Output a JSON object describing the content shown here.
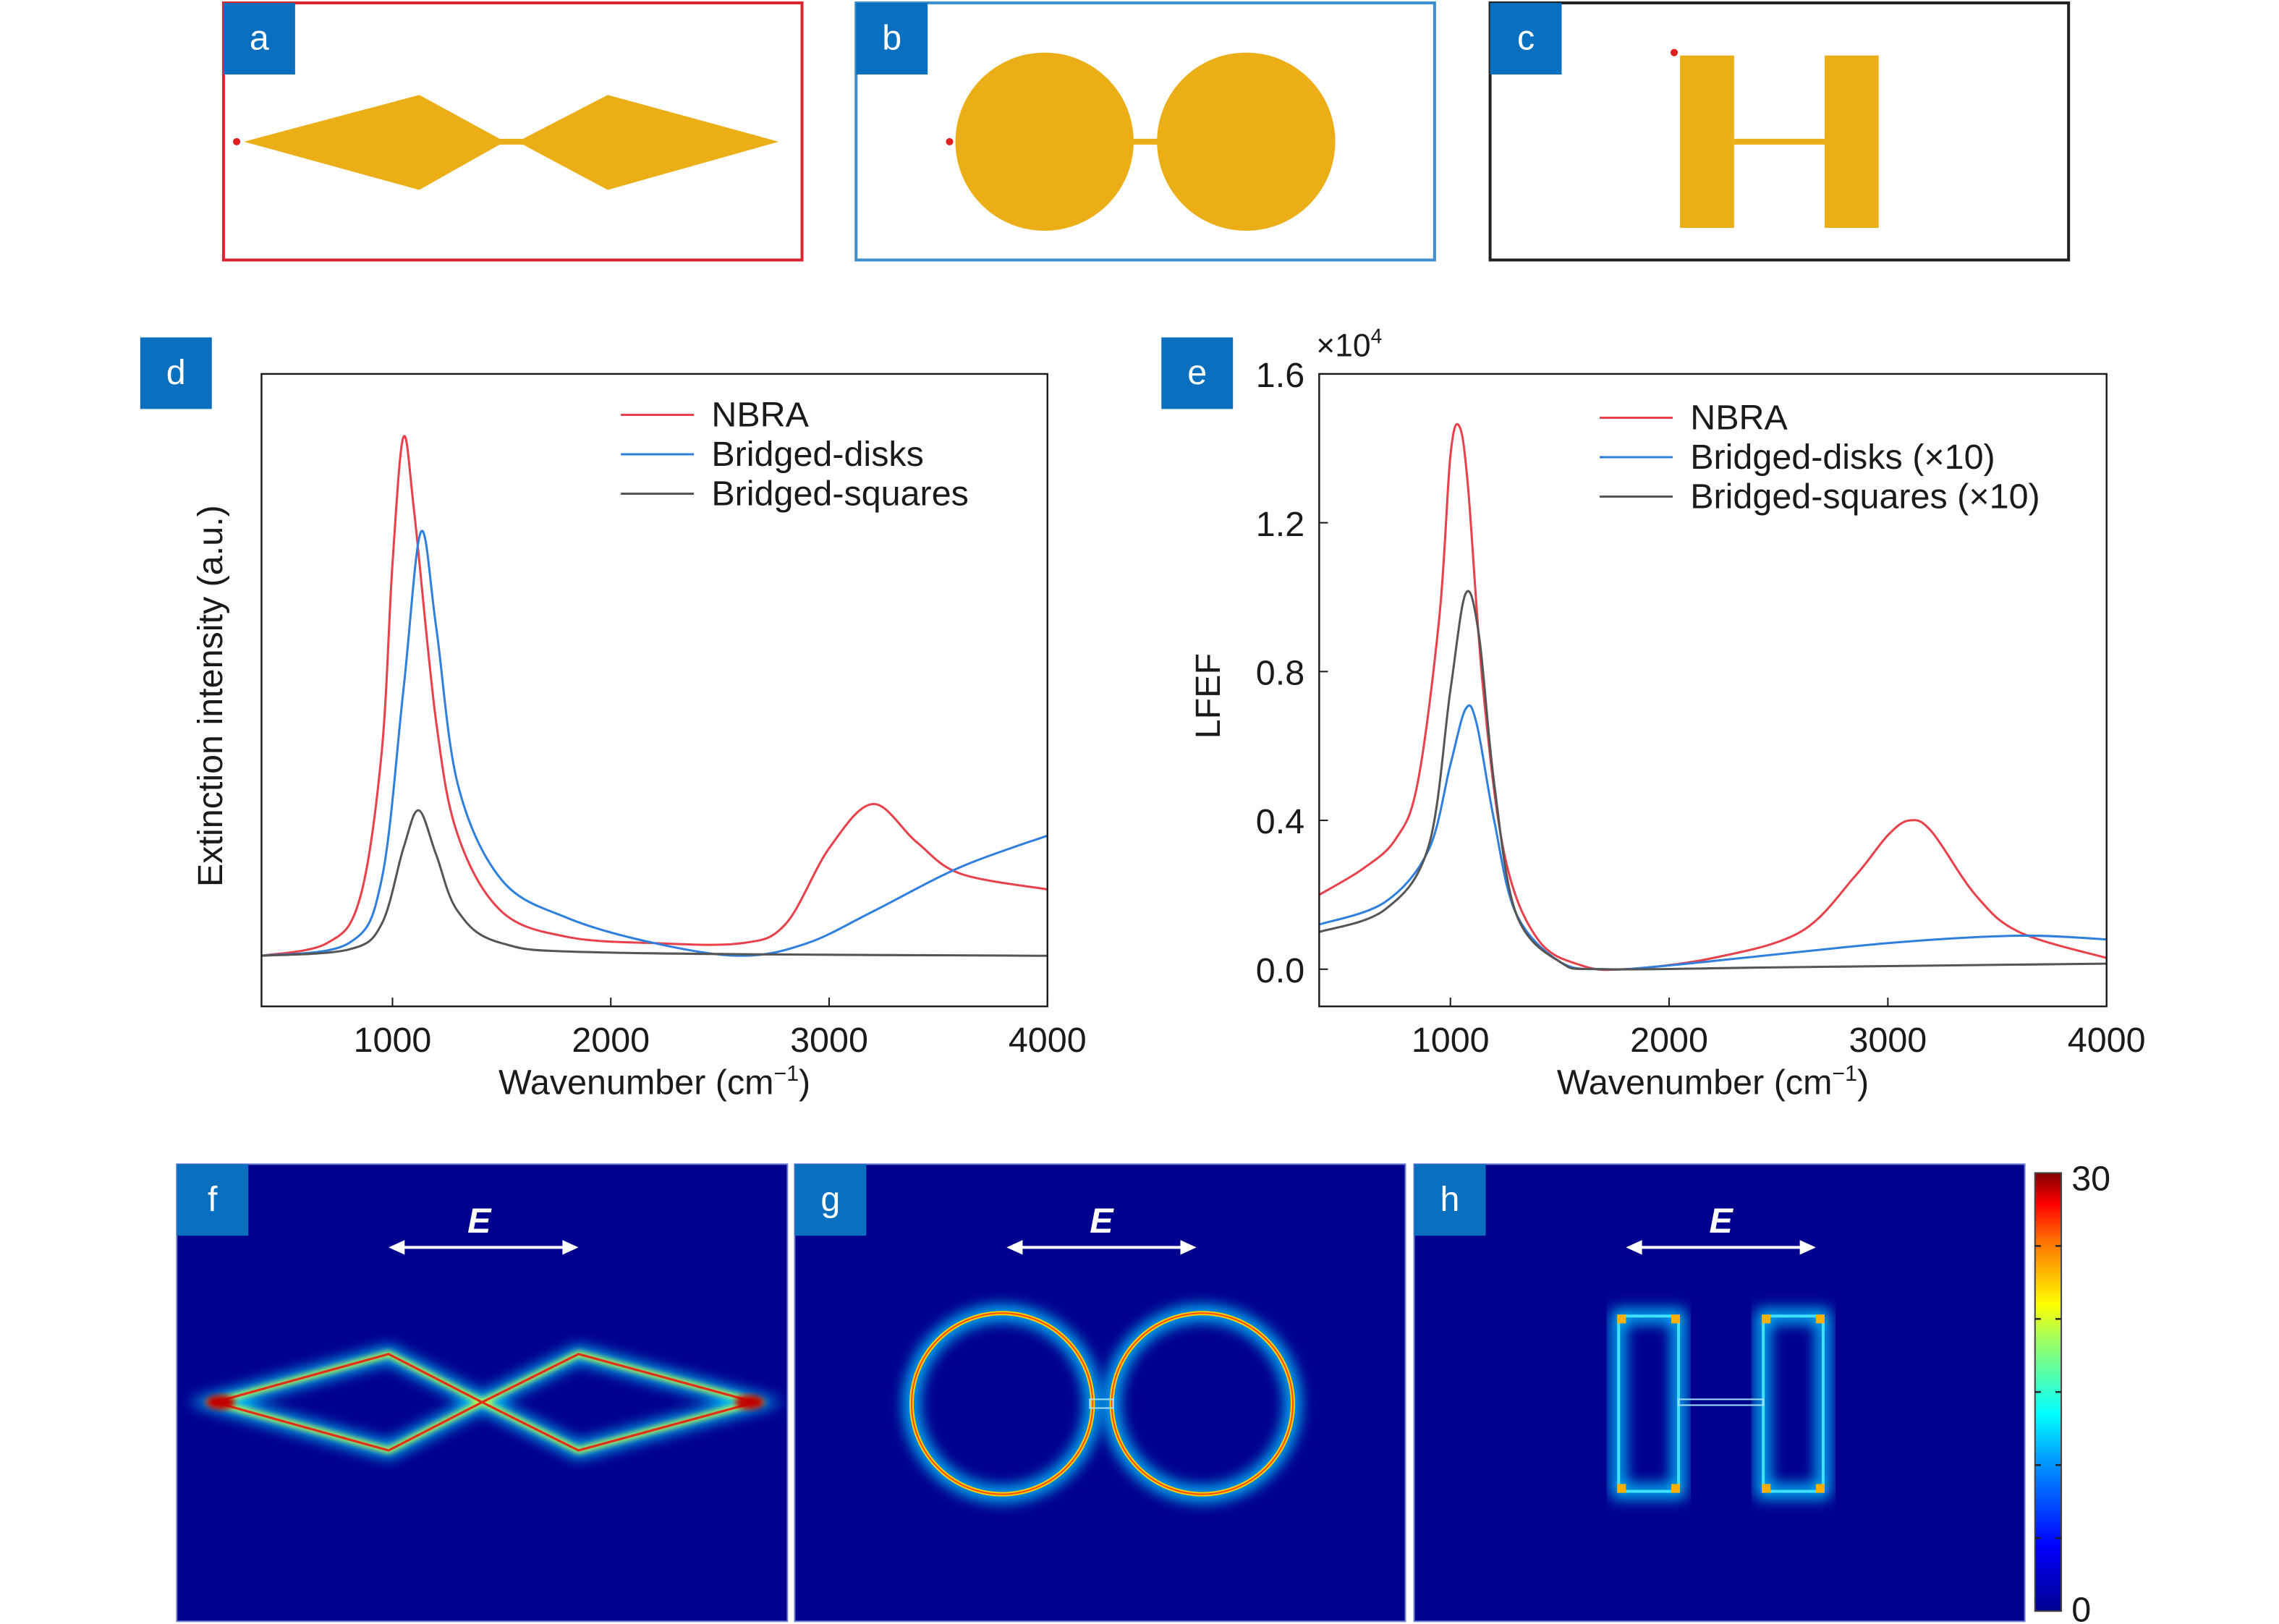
{
  "panels": {
    "a": {
      "label": "a",
      "border_color": "#d9262e"
    },
    "b": {
      "label": "b",
      "border_color": "#3d8fd0"
    },
    "c": {
      "label": "c",
      "border_color": "#222222"
    },
    "d": {
      "label": "d"
    },
    "e": {
      "label": "e"
    },
    "f": {
      "label": "f",
      "field_label": "E"
    },
    "g": {
      "label": "g",
      "field_label": "E"
    },
    "h": {
      "label": "h",
      "field_label": "E"
    }
  },
  "colors": {
    "gold": "#ecae17",
    "label_bg": "#0a6fbf",
    "field_bg": "#00008e",
    "NBRA": "#e8414b",
    "Bridged-disks": "#2f7fdc",
    "Bridged-squares": "#555555"
  },
  "colorbar": {
    "max_label": "30",
    "min_label": "0",
    "min": 0,
    "max": 30
  },
  "chart_data": [
    {
      "type": "line",
      "title": "",
      "xlabel": "Wavenumber (cm",
      "xlabel_sup": "−1",
      "xlabel_end": ")",
      "ylabel": "Extinction intensity (a.u.)",
      "xlim": [
        400,
        4000
      ],
      "ylim": [
        0,
        1
      ],
      "xticks": [
        1000,
        2000,
        3000,
        4000
      ],
      "yticks": [],
      "legend": "top-right",
      "series": [
        {
          "name": "NBRA",
          "color": "#e8414b",
          "x": [
            400,
            700,
            850,
            950,
            1000,
            1050,
            1100,
            1200,
            1300,
            1500,
            1800,
            2200,
            2600,
            2800,
            3000,
            3200,
            3400,
            3600,
            4000
          ],
          "y": [
            0.08,
            0.1,
            0.17,
            0.4,
            0.7,
            0.9,
            0.78,
            0.45,
            0.27,
            0.15,
            0.11,
            0.1,
            0.1,
            0.13,
            0.25,
            0.32,
            0.26,
            0.21,
            0.185
          ]
        },
        {
          "name": "Bridged-disks",
          "color": "#2f7fdc",
          "x": [
            400,
            800,
            950,
            1050,
            1130,
            1200,
            1300,
            1500,
            1800,
            2200,
            2600,
            2900,
            3200,
            3600,
            4000
          ],
          "y": [
            0.08,
            0.1,
            0.2,
            0.5,
            0.75,
            0.6,
            0.35,
            0.2,
            0.14,
            0.1,
            0.08,
            0.1,
            0.15,
            0.22,
            0.27
          ]
        },
        {
          "name": "Bridged-squares",
          "color": "#555555",
          "x": [
            400,
            800,
            950,
            1050,
            1120,
            1200,
            1300,
            1500,
            2000,
            4000
          ],
          "y": [
            0.08,
            0.09,
            0.13,
            0.25,
            0.31,
            0.24,
            0.15,
            0.1,
            0.085,
            0.08
          ]
        }
      ]
    },
    {
      "type": "line",
      "title": "",
      "xlabel": "Wavenumber (cm",
      "xlabel_sup": "−1",
      "xlabel_end": ")",
      "ylabel": "LFEF",
      "y_multiplier": "×10",
      "y_multiplier_exp": "4",
      "xlim": [
        400,
        4000
      ],
      "ylim": [
        -0.1,
        1.6
      ],
      "xticks": [
        1000,
        2000,
        3000,
        4000
      ],
      "yticks": [
        "0.0",
        "0.4",
        "0.8",
        "1.2",
        "1.6"
      ],
      "legend": "top-right",
      "series": [
        {
          "name": "NBRA",
          "color": "#e8414b",
          "x": [
            400,
            600,
            750,
            850,
            950,
            1000,
            1040,
            1080,
            1150,
            1250,
            1400,
            1600,
            1800,
            2200,
            2600,
            2850,
            3000,
            3100,
            3200,
            3400,
            3600,
            4000
          ],
          "y": [
            0.2,
            0.27,
            0.35,
            0.5,
            0.95,
            1.38,
            1.46,
            1.3,
            0.75,
            0.3,
            0.08,
            0.01,
            0.0,
            0.03,
            0.1,
            0.25,
            0.36,
            0.4,
            0.37,
            0.2,
            0.1,
            0.03
          ]
        },
        {
          "name": "Bridged-disks (×10)",
          "color": "#2f7fdc",
          "x": [
            400,
            700,
            900,
            1000,
            1070,
            1120,
            1200,
            1300,
            1500,
            1700,
            2000,
            3000,
            3600,
            4000
          ],
          "y": [
            0.12,
            0.18,
            0.32,
            0.55,
            0.7,
            0.66,
            0.4,
            0.15,
            0.02,
            0.0,
            0.01,
            0.07,
            0.09,
            0.08
          ]
        },
        {
          "name": "Bridged-squares (×10)",
          "color": "#555555",
          "x": [
            400,
            700,
            900,
            1000,
            1070,
            1130,
            1200,
            1300,
            1500,
            1700,
            2500,
            4000
          ],
          "y": [
            0.1,
            0.16,
            0.33,
            0.75,
            1.01,
            0.9,
            0.5,
            0.15,
            0.02,
            0.0,
            0.005,
            0.015
          ]
        }
      ]
    }
  ]
}
